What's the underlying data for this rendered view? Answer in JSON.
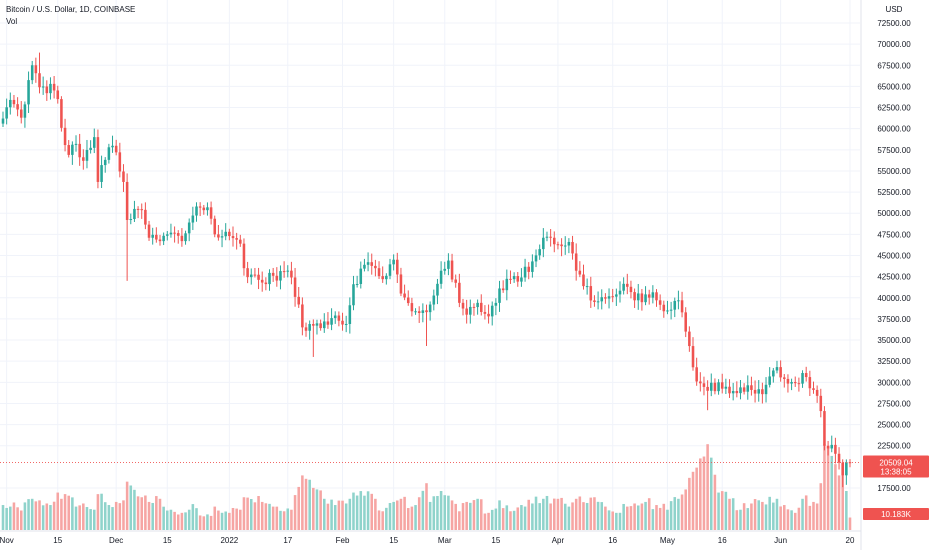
{
  "symbol": {
    "title": "Bitcoin / U.S. Dollar, 1D, COINBASE",
    "volume_label": "Vol"
  },
  "price_axis": {
    "currency_label": "USD",
    "ticks": [
      "72500.00",
      "70000.00",
      "67500.00",
      "65000.00",
      "62500.00",
      "60000.00",
      "57500.00",
      "55000.00",
      "52500.00",
      "50000.00",
      "47500.00",
      "45000.00",
      "42500.00",
      "40000.00",
      "37500.00",
      "35000.00",
      "32500.00",
      "30000.00",
      "27500.00",
      "25000.00",
      "22500.00",
      "17500.00"
    ]
  },
  "time_axis": {
    "ticks": [
      "Nov",
      "15",
      "Dec",
      "15",
      "2022",
      "17",
      "Feb",
      "15",
      "Mar",
      "15",
      "Apr",
      "16",
      "May",
      "16",
      "Jun",
      "20"
    ]
  },
  "last_price": {
    "price_text": "20509.04",
    "countdown_text": "13:38:05",
    "volume_text": "10.183K"
  },
  "colors": {
    "up": "#26a69a",
    "down": "#ef5350",
    "up_volume": "#8fd3cb",
    "down_volume": "#f6a5a3",
    "grid": "#f0f3fa",
    "axis_text": "#131722",
    "price_tag": "#ef5350"
  },
  "chart_data": {
    "type": "candlestick",
    "title": "Bitcoin / U.S. Dollar, 1D, COINBASE",
    "ylabel": "USD",
    "ylim": [
      16000,
      74500
    ],
    "grid": true,
    "anchors": [
      {
        "date": "2021-10-31",
        "close": 61200,
        "vol": 32
      },
      {
        "date": "2021-11-02",
        "close": 63400,
        "vol": 30
      },
      {
        "date": "2021-11-05",
        "close": 61300,
        "vol": 25
      },
      {
        "date": "2021-11-08",
        "close": 67500,
        "vol": 40
      },
      {
        "date": "2021-11-10",
        "close": 64900,
        "vol": 38
      },
      {
        "date": "2021-11-12",
        "close": 64200,
        "vol": 34
      },
      {
        "date": "2021-11-13",
        "close": 65300,
        "vol": 32
      },
      {
        "date": "2021-11-15",
        "close": 63500,
        "vol": 48
      },
      {
        "date": "2021-11-16",
        "close": 60100,
        "vol": 40
      },
      {
        "date": "2021-11-18",
        "close": 56900,
        "vol": 44
      },
      {
        "date": "2021-11-20",
        "close": 58200,
        "vol": 30
      },
      {
        "date": "2021-11-22",
        "close": 56200,
        "vol": 34
      },
      {
        "date": "2021-11-25",
        "close": 59000,
        "vol": 26
      },
      {
        "date": "2021-11-26",
        "close": 53700,
        "vol": 46
      },
      {
        "date": "2021-11-29",
        "close": 57800,
        "vol": 32
      },
      {
        "date": "2021-12-01",
        "close": 57200,
        "vol": 36
      },
      {
        "date": "2021-12-03",
        "close": 53700,
        "vol": 38
      },
      {
        "date": "2021-12-04",
        "close": 49200,
        "vol": 62
      },
      {
        "date": "2021-12-08",
        "close": 50400,
        "vol": 42
      },
      {
        "date": "2021-12-10",
        "close": 47100,
        "vol": 36
      },
      {
        "date": "2021-12-13",
        "close": 46700,
        "vol": 40
      },
      {
        "date": "2021-12-16",
        "close": 47700,
        "vol": 26
      },
      {
        "date": "2021-12-19",
        "close": 46700,
        "vol": 22
      },
      {
        "date": "2021-12-21",
        "close": 48900,
        "vol": 26
      },
      {
        "date": "2021-12-23",
        "close": 50800,
        "vol": 28
      },
      {
        "date": "2021-12-26",
        "close": 50700,
        "vol": 20
      },
      {
        "date": "2021-12-28",
        "close": 47500,
        "vol": 30
      },
      {
        "date": "2022-01-01",
        "close": 47300,
        "vol": 22
      },
      {
        "date": "2022-01-04",
        "close": 46400,
        "vol": 26
      },
      {
        "date": "2022-01-05",
        "close": 43500,
        "vol": 42
      },
      {
        "date": "2022-01-10",
        "close": 41800,
        "vol": 36
      },
      {
        "date": "2022-01-13",
        "close": 42600,
        "vol": 30
      },
      {
        "date": "2022-01-16",
        "close": 43100,
        "vol": 24
      },
      {
        "date": "2022-01-18",
        "close": 42400,
        "vol": 26
      },
      {
        "date": "2022-01-21",
        "close": 36500,
        "vol": 70
      },
      {
        "date": "2022-01-24",
        "close": 36700,
        "vol": 54
      },
      {
        "date": "2022-01-27",
        "close": 37200,
        "vol": 40
      },
      {
        "date": "2022-01-30",
        "close": 37900,
        "vol": 32
      },
      {
        "date": "2022-02-02",
        "close": 36900,
        "vol": 34
      },
      {
        "date": "2022-02-04",
        "close": 41600,
        "vol": 48
      },
      {
        "date": "2022-02-07",
        "close": 43900,
        "vol": 44
      },
      {
        "date": "2022-02-10",
        "close": 43500,
        "vol": 40
      },
      {
        "date": "2022-02-12",
        "close": 42200,
        "vol": 24
      },
      {
        "date": "2022-02-15",
        "close": 44500,
        "vol": 36
      },
      {
        "date": "2022-02-17",
        "close": 40500,
        "vol": 40
      },
      {
        "date": "2022-02-20",
        "close": 38400,
        "vol": 30
      },
      {
        "date": "2022-02-22",
        "close": 38200,
        "vol": 42
      },
      {
        "date": "2022-02-24",
        "close": 38300,
        "vol": 60
      },
      {
        "date": "2022-02-25",
        "close": 39200,
        "vol": 36
      },
      {
        "date": "2022-02-28",
        "close": 43200,
        "vol": 50
      },
      {
        "date": "2022-03-02",
        "close": 44400,
        "vol": 44
      },
      {
        "date": "2022-03-05",
        "close": 39400,
        "vol": 24
      },
      {
        "date": "2022-03-07",
        "close": 38000,
        "vol": 36
      },
      {
        "date": "2022-03-10",
        "close": 39400,
        "vol": 40
      },
      {
        "date": "2022-03-13",
        "close": 37800,
        "vol": 22
      },
      {
        "date": "2022-03-16",
        "close": 41100,
        "vol": 38
      },
      {
        "date": "2022-03-19",
        "close": 42200,
        "vol": 24
      },
      {
        "date": "2022-03-22",
        "close": 42400,
        "vol": 32
      },
      {
        "date": "2022-03-25",
        "close": 44300,
        "vol": 34
      },
      {
        "date": "2022-03-28",
        "close": 47100,
        "vol": 40
      },
      {
        "date": "2022-03-30",
        "close": 47100,
        "vol": 34
      },
      {
        "date": "2022-04-01",
        "close": 46300,
        "vol": 40
      },
      {
        "date": "2022-04-04",
        "close": 46600,
        "vol": 30
      },
      {
        "date": "2022-04-06",
        "close": 43200,
        "vol": 40
      },
      {
        "date": "2022-04-11",
        "close": 39500,
        "vol": 42
      },
      {
        "date": "2022-04-14",
        "close": 39900,
        "vol": 30
      },
      {
        "date": "2022-04-17",
        "close": 40400,
        "vol": 22
      },
      {
        "date": "2022-04-20",
        "close": 41300,
        "vol": 30
      },
      {
        "date": "2022-04-22",
        "close": 39700,
        "vol": 34
      },
      {
        "date": "2022-04-25",
        "close": 40400,
        "vol": 36
      },
      {
        "date": "2022-04-28",
        "close": 39700,
        "vol": 32
      },
      {
        "date": "2022-05-01",
        "close": 38500,
        "vol": 26
      },
      {
        "date": "2022-05-04",
        "close": 39700,
        "vol": 40
      },
      {
        "date": "2022-05-06",
        "close": 36000,
        "vol": 52
      },
      {
        "date": "2022-05-09",
        "close": 30100,
        "vol": 80
      },
      {
        "date": "2022-05-12",
        "close": 29000,
        "vol": 110
      },
      {
        "date": "2022-05-15",
        "close": 30000,
        "vol": 48
      },
      {
        "date": "2022-05-18",
        "close": 28700,
        "vol": 40
      },
      {
        "date": "2022-05-21",
        "close": 29400,
        "vol": 26
      },
      {
        "date": "2022-05-24",
        "close": 29100,
        "vol": 34
      },
      {
        "date": "2022-05-27",
        "close": 28600,
        "vol": 36
      },
      {
        "date": "2022-05-31",
        "close": 31800,
        "vol": 40
      },
      {
        "date": "2022-06-02",
        "close": 30400,
        "vol": 32
      },
      {
        "date": "2022-06-05",
        "close": 29900,
        "vol": 22
      },
      {
        "date": "2022-06-07",
        "close": 31100,
        "vol": 40
      },
      {
        "date": "2022-06-10",
        "close": 29100,
        "vol": 36
      },
      {
        "date": "2022-06-11",
        "close": 28400,
        "vol": 34
      },
      {
        "date": "2022-06-12",
        "close": 26600,
        "vol": 60
      },
      {
        "date": "2022-06-13",
        "close": 22500,
        "vol": 110
      },
      {
        "date": "2022-06-15",
        "close": 22600,
        "vol": 95
      },
      {
        "date": "2022-06-17",
        "close": 20500,
        "vol": 70
      },
      {
        "date": "2022-06-18",
        "close": 19000,
        "vol": 85
      },
      {
        "date": "2022-06-19",
        "close": 20550,
        "vol": 50
      },
      {
        "date": "2022-06-20",
        "close": 20509,
        "vol": 16
      }
    ],
    "wicks": [
      {
        "date": "2021-12-04",
        "low": 42000
      },
      {
        "date": "2022-01-24",
        "low": 33000
      },
      {
        "date": "2022-02-24",
        "low": 34300
      },
      {
        "date": "2022-05-12",
        "low": 26700
      },
      {
        "date": "2022-06-18",
        "low": 17600
      },
      {
        "date": "2021-11-10",
        "high": 69000
      }
    ],
    "last_price": 20509.04,
    "last_volume": "10.183K"
  }
}
